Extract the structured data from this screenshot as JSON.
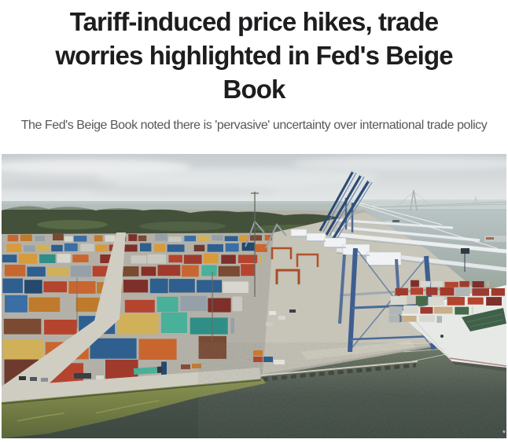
{
  "article": {
    "headline": "Tariff-induced price hikes, trade worries highlighted in Fed's Beige Book",
    "headline_lines": {
      "0": "Tariff-induced price hikes, trade",
      "1": "worries highlighted in Fed's Beige",
      "2": "Book"
    },
    "subheadline": "The Fed's Beige Book noted there is 'pervasive' uncertainty over international trade policy"
  },
  "image": {
    "alt": "Aerial view of a shipping container port: stacked containers, blue gantry cranes, a pier and a docked container ship beside a river",
    "watermark": "*",
    "palette": {
      "headline_text": "#1d1d1f",
      "subhead_text": "#56585a",
      "sky_top": "#c6cbce",
      "sky_bottom": "#f1f2f1",
      "water_light": "#bac5c8",
      "water_deep": "#3d4841",
      "pavement": "#b3b1a7",
      "road": "#d0cdc3",
      "treeline": "#44513a",
      "marsh": "#76824a",
      "crane_blue": "#3d5e90",
      "crane_white": "#eef0f2",
      "pier": "#c7c4b8",
      "ship_hull": "#e7e9e7",
      "container_colors": [
        "#a03a2c",
        "#b5442f",
        "#8a2f28",
        "#c9662f",
        "#d89a3a",
        "#c07a2b",
        "#2f5f8f",
        "#3a6ea5",
        "#24486e",
        "#2f8f86",
        "#49b099",
        "#d8d7cf",
        "#c9c9c2",
        "#7a4a33",
        "#6e3a2e",
        "#96a0a8",
        "#b5442f",
        "#a03a2c",
        "#2f5f8f",
        "#c9662f",
        "#7e2f2a",
        "#d0b15a"
      ],
      "ship_container_colors": [
        "#9e3b30",
        "#b5442f",
        "#d8d8d0",
        "#c9b089",
        "#7e2f2a",
        "#476b4a",
        "#b0b5b5",
        "#a03a2c"
      ]
    }
  }
}
